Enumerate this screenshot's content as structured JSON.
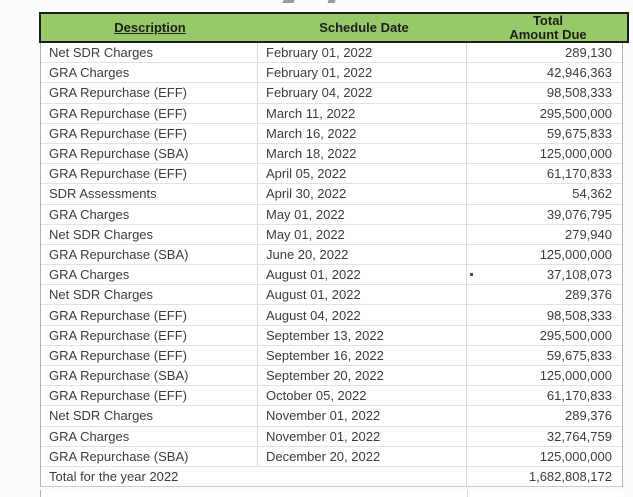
{
  "header": {
    "columns": {
      "description": "Description",
      "schedule_date": "Schedule Date",
      "total_line1": "Total",
      "total_line2": "Amount Due"
    }
  },
  "rows": [
    {
      "description": "Net SDR Charges",
      "date": "February 01, 2022",
      "amount": "289,130"
    },
    {
      "description": "GRA Charges",
      "date": "February 01, 2022",
      "amount": "42,946,363"
    },
    {
      "description": "GRA Repurchase (EFF)",
      "date": "February 04, 2022",
      "amount": "98,508,333"
    },
    {
      "description": "GRA Repurchase (EFF)",
      "date": "March 11, 2022",
      "amount": "295,500,000"
    },
    {
      "description": "GRA Repurchase (EFF)",
      "date": "March 16, 2022",
      "amount": "59,675,833"
    },
    {
      "description": "GRA Repurchase (SBA)",
      "date": "March 18, 2022",
      "amount": "125,000,000"
    },
    {
      "description": "GRA Repurchase (EFF)",
      "date": "April 05, 2022",
      "amount": "61,170,833"
    },
    {
      "description": "SDR Assessments",
      "date": "April 30, 2022",
      "amount": "54,362"
    },
    {
      "description": "GRA Charges",
      "date": "May 01, 2022",
      "amount": "39,076,795"
    },
    {
      "description": "Net SDR Charges",
      "date": "May 01, 2022",
      "amount": "279,940"
    },
    {
      "description": "GRA Repurchase (SBA)",
      "date": "June 20, 2022",
      "amount": "125,000,000"
    },
    {
      "description": "GRA Charges",
      "date": "August 01, 2022",
      "amount": "37,108,073"
    },
    {
      "description": "Net SDR Charges",
      "date": "August 01, 2022",
      "amount": "289,376"
    },
    {
      "description": "GRA Repurchase (EFF)",
      "date": "August 04, 2022",
      "amount": "98,508,333"
    },
    {
      "description": "GRA Repurchase (EFF)",
      "date": "September 13, 2022",
      "amount": "295,500,000"
    },
    {
      "description": "GRA Repurchase (EFF)",
      "date": "September 16, 2022",
      "amount": "59,675,833"
    },
    {
      "description": "GRA Repurchase (SBA)",
      "date": "September 20, 2022",
      "amount": "125,000,000"
    },
    {
      "description": "GRA Repurchase (EFF)",
      "date": "October 05, 2022",
      "amount": "61,170,833"
    },
    {
      "description": "Net SDR Charges",
      "date": "November 01, 2022",
      "amount": "289,376"
    },
    {
      "description": "GRA Charges",
      "date": "November 01, 2022",
      "amount": "32,764,759"
    },
    {
      "description": "GRA Repurchase (SBA)",
      "date": "December 20, 2022",
      "amount": "125,000,000"
    }
  ],
  "total": {
    "label": "Total for the year 2022",
    "amount": "1,682,808,172"
  },
  "colors": {
    "header_bg": "#98c968",
    "header_border": "#1d1d1d",
    "body_text": "#3c3c3c",
    "grid_line": "#e2e2e2",
    "outer_border": "#b0b0b0"
  }
}
